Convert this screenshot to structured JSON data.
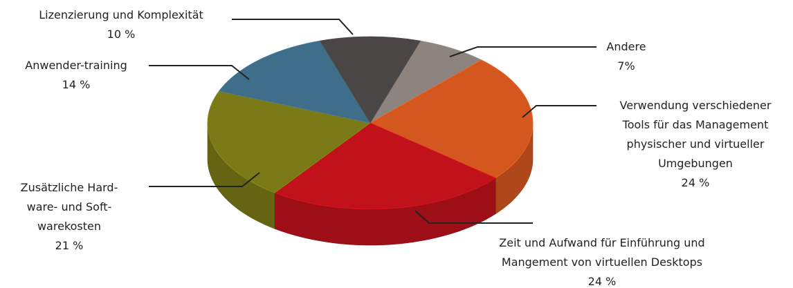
{
  "chart_data": {
    "type": "pie",
    "categories": [
      "Andere",
      "Verwendung verschiedener\nTools für das Management\nphysischer und virtueller\nUmgebungen",
      "Zeit und Aufwand für Einführung und\nMangement von virtuellen Desktops",
      "Zusätzliche Hard-\nware- und Soft-\nwarekosten",
      "Anwender-training",
      "Lizenzierung und Komplexität"
    ],
    "values": [
      7,
      24,
      24,
      21,
      14,
      10
    ],
    "value_labels": [
      "7%",
      "24 %",
      "24 %",
      "21 %",
      "14 %",
      "10 %"
    ],
    "colors": [
      "#8d8480",
      "#d4571f",
      "#c1111b",
      "#7b7a17",
      "#3f6e8a",
      "#4b4646"
    ]
  }
}
